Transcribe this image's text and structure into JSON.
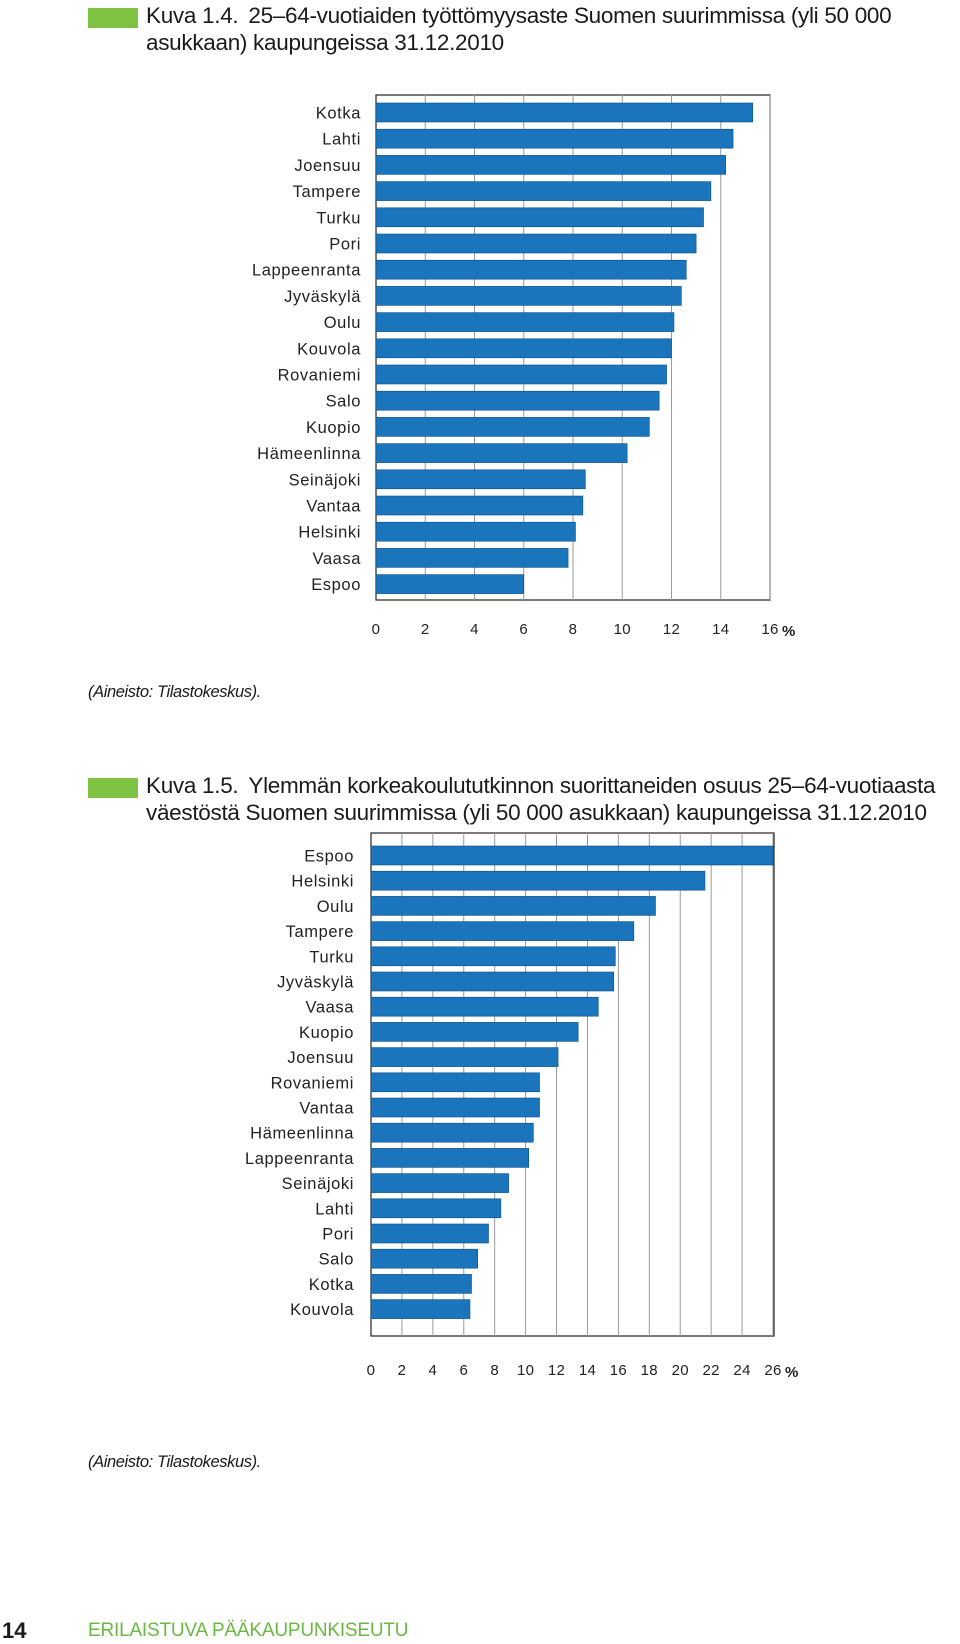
{
  "figures": [
    {
      "number": "Kuva 1.4.",
      "caption": "25–64-vuotiaiden työttömyysaste Suomen suurimmissa (yli 50 000 asukkaan) kaupungeissa 31.12.2010",
      "source": "(Aineisto: Tilastokeskus).",
      "chart_data": {
        "type": "bar",
        "orientation": "horizontal",
        "categories": [
          "Kotka",
          "Lahti",
          "Joensuu",
          "Tampere",
          "Turku",
          "Pori",
          "Lappeenranta",
          "Jyväskylä",
          "Oulu",
          "Kouvola",
          "Rovaniemi",
          "Salo",
          "Kuopio",
          "Hämeenlinna",
          "Seinäjoki",
          "Vantaa",
          "Helsinki",
          "Vaasa",
          "Espoo"
        ],
        "values": [
          15.3,
          14.5,
          14.2,
          13.6,
          13.3,
          13.0,
          12.6,
          12.4,
          12.1,
          12.0,
          11.8,
          11.5,
          11.1,
          10.2,
          8.5,
          8.4,
          8.1,
          7.8,
          6.0
        ],
        "xlim": [
          0,
          16
        ],
        "xticks": [
          "0",
          "2",
          "4",
          "6",
          "8",
          "10",
          "12",
          "14",
          "16"
        ],
        "unit": "%",
        "grid": "vertical",
        "bar_color": "#1a75bc"
      }
    },
    {
      "number": "Kuva 1.5.",
      "caption": "Ylemmän korkeakoulututkinnon suorittaneiden osuus 25–64-vuotiaasta väestöstä Suomen suurimmissa (yli 50 000 asukkaan) kaupungeissa 31.12.2010",
      "source": "(Aineisto: Tilastokeskus).",
      "chart_data": {
        "type": "bar",
        "orientation": "horizontal",
        "categories": [
          "Espoo",
          "Helsinki",
          "Oulu",
          "Tampere",
          "Turku",
          "Jyväskylä",
          "Vaasa",
          "Kuopio",
          "Joensuu",
          "Rovaniemi",
          "Vantaa",
          "Hämeenlinna",
          "Lappeenranta",
          "Seinäjoki",
          "Lahti",
          "Pori",
          "Salo",
          "Kotka",
          "Kouvola"
        ],
        "values": [
          26.0,
          21.6,
          18.4,
          17.0,
          15.8,
          15.7,
          14.7,
          13.4,
          12.1,
          10.9,
          10.9,
          10.5,
          10.2,
          8.9,
          8.4,
          7.6,
          6.9,
          6.5,
          6.4
        ],
        "xlim": [
          0,
          26
        ],
        "xticks": [
          "0",
          "2",
          "4",
          "6",
          "8",
          "10",
          "12",
          "14",
          "16",
          "18",
          "20",
          "22",
          "24",
          "26"
        ],
        "unit": "%",
        "grid": "vertical",
        "bar_color": "#1a75bc"
      }
    }
  ],
  "footer": {
    "page_number": "14",
    "publication_title": "ERILAISTUVA PÄÄKAUPUNKISEUTU"
  }
}
